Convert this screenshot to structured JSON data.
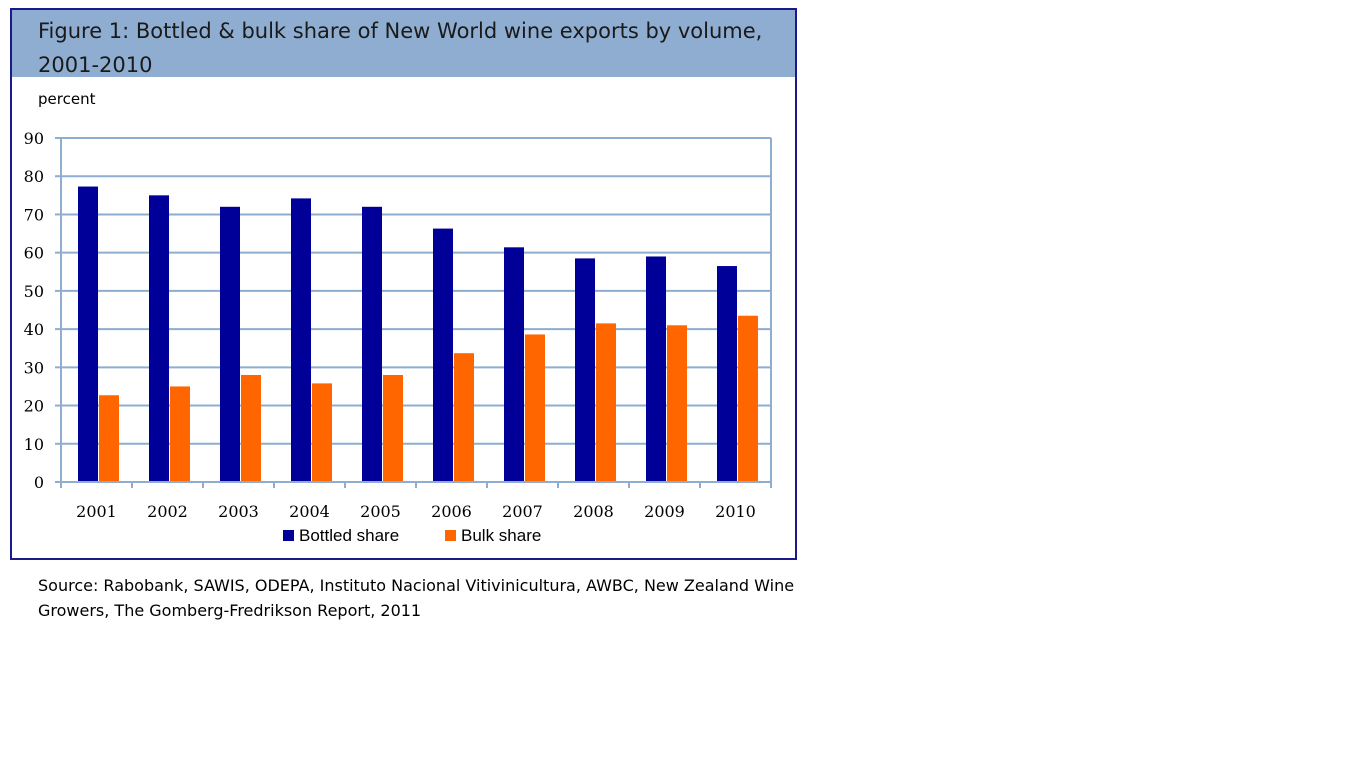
{
  "figure": {
    "title": "Figure 1: Bottled & bulk share of New World wine exports by volume, 2001-2010",
    "source": "Source: Rabobank, SAWIS, ODEPA, Instituto Nacional Vitivinicultura, AWBC, New Zealand Wine Growers, The Gomberg-Fredrikson Report, 2011"
  },
  "chart_data": {
    "type": "bar",
    "title": "Figure 1: Bottled & bulk share of New World wine exports by volume, 2001-2010",
    "xlabel": "",
    "ylabel": "percent",
    "ylim": [
      0,
      90
    ],
    "yticks": [
      0,
      10,
      20,
      30,
      40,
      50,
      60,
      70,
      80,
      90
    ],
    "grid": true,
    "legend_position": "bottom",
    "categories": [
      "2001",
      "2002",
      "2003",
      "2004",
      "2005",
      "2006",
      "2007",
      "2008",
      "2009",
      "2010"
    ],
    "series": [
      {
        "name": "Bottled share",
        "color": "#000099",
        "values": [
          77.3,
          75,
          72,
          74.2,
          72,
          66.3,
          61.4,
          58.5,
          59,
          56.5
        ]
      },
      {
        "name": "Bulk share",
        "color": "#ff6600",
        "values": [
          22.7,
          25,
          28,
          25.8,
          28,
          33.7,
          38.6,
          41.5,
          41,
          43.5
        ]
      }
    ]
  },
  "colors": {
    "title_bar": "#8eadd0",
    "frame": "#1a1a8c",
    "grid": "#8eadd0"
  }
}
